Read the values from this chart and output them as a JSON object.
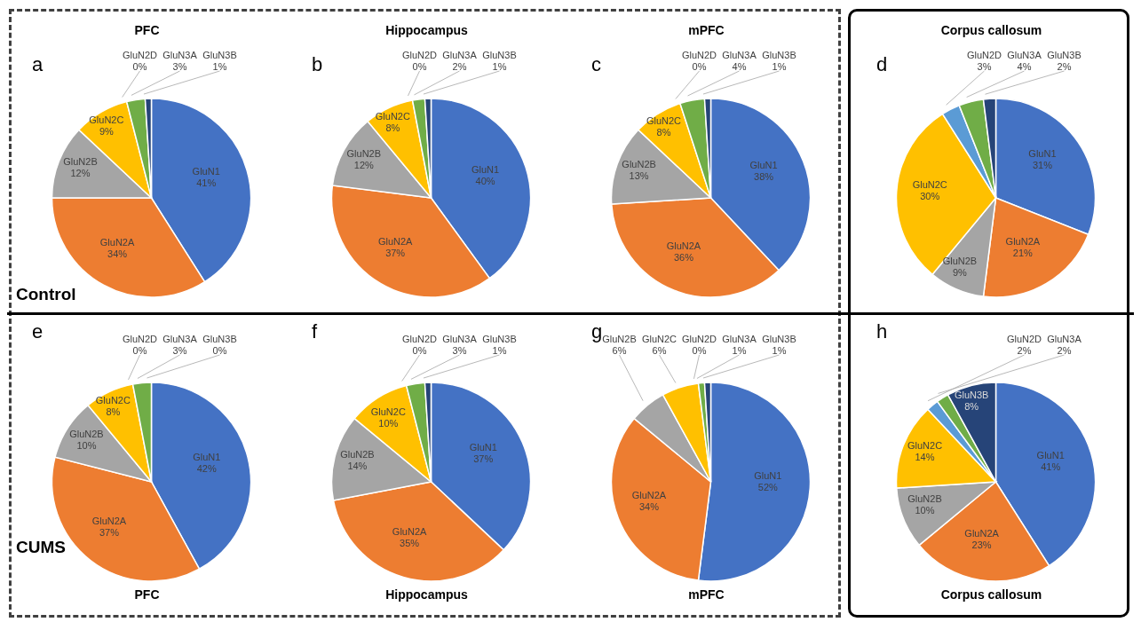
{
  "chart_data": [
    {
      "type": "pie",
      "title": "PFC",
      "annotations": [
        "a",
        "Control"
      ],
      "categories": [
        "GluN1",
        "GluN2A",
        "GluN2B",
        "GluN2C",
        "GluN2D",
        "GluN3A",
        "GluN3B"
      ],
      "values": [
        41,
        34,
        12,
        9,
        0,
        3,
        1
      ],
      "value_labels": [
        "41%",
        "34%",
        "12%",
        "9%",
        "0%",
        "3%",
        "1%"
      ],
      "colors": [
        "#4472c4",
        "#ed7d31",
        "#a5a5a5",
        "#ffc000",
        "#5b9bd5",
        "#70ad47",
        "#264478"
      ]
    },
    {
      "type": "pie",
      "title": "Hippocampus",
      "annotations": [
        "b"
      ],
      "categories": [
        "GluN1",
        "GluN2A",
        "GluN2B",
        "GluN2C",
        "GluN2D",
        "GluN3A",
        "GluN3B"
      ],
      "values": [
        40,
        37,
        12,
        8,
        0,
        2,
        1
      ],
      "value_labels": [
        "40%",
        "37%",
        "12%",
        "8%",
        "0%",
        "2%",
        "1%"
      ],
      "colors": [
        "#4472c4",
        "#ed7d31",
        "#a5a5a5",
        "#ffc000",
        "#5b9bd5",
        "#70ad47",
        "#264478"
      ]
    },
    {
      "type": "pie",
      "title": "mPFC",
      "annotations": [
        "c"
      ],
      "categories": [
        "GluN1",
        "GluN2A",
        "GluN2B",
        "GluN2C",
        "GluN2D",
        "GluN3A",
        "GluN3B"
      ],
      "values": [
        38,
        36,
        13,
        8,
        0,
        4,
        1
      ],
      "value_labels": [
        "38%",
        "36%",
        "13%",
        "8%",
        "0%",
        "4%",
        "1%"
      ],
      "colors": [
        "#4472c4",
        "#ed7d31",
        "#a5a5a5",
        "#ffc000",
        "#5b9bd5",
        "#70ad47",
        "#264478"
      ]
    },
    {
      "type": "pie",
      "title": "Corpus callosum",
      "annotations": [
        "d"
      ],
      "categories": [
        "GluN1",
        "GluN2A",
        "GluN2B",
        "GluN2C",
        "GluN2D",
        "GluN3A",
        "GluN3B"
      ],
      "values": [
        31,
        21,
        9,
        30,
        3,
        4,
        2
      ],
      "value_labels": [
        "31%",
        "21%",
        "9%",
        "30%",
        "3%",
        "4%",
        "2%"
      ],
      "colors": [
        "#4472c4",
        "#ed7d31",
        "#a5a5a5",
        "#ffc000",
        "#5b9bd5",
        "#70ad47",
        "#264478"
      ]
    },
    {
      "type": "pie",
      "title": "PFC",
      "annotations": [
        "e",
        "CUMS"
      ],
      "categories": [
        "GluN1",
        "GluN2A",
        "GluN2B",
        "GluN2C",
        "GluN2D",
        "GluN3A",
        "GluN3B"
      ],
      "values": [
        42,
        37,
        10,
        8,
        0,
        3,
        0
      ],
      "value_labels": [
        "42%",
        "37%",
        "10%",
        "8%",
        "0%",
        "3%",
        "0%"
      ],
      "colors": [
        "#4472c4",
        "#ed7d31",
        "#a5a5a5",
        "#ffc000",
        "#5b9bd5",
        "#70ad47",
        "#264478"
      ]
    },
    {
      "type": "pie",
      "title": "Hippocampus",
      "annotations": [
        "f"
      ],
      "categories": [
        "GluN1",
        "GluN2A",
        "GluN2B",
        "GluN2C",
        "GluN2D",
        "GluN3A",
        "GluN3B"
      ],
      "values": [
        37,
        35,
        14,
        10,
        0,
        3,
        1
      ],
      "value_labels": [
        "37%",
        "35%",
        "14%",
        "10%",
        "0%",
        "3%",
        "1%"
      ],
      "colors": [
        "#4472c4",
        "#ed7d31",
        "#a5a5a5",
        "#ffc000",
        "#5b9bd5",
        "#70ad47",
        "#264478"
      ]
    },
    {
      "type": "pie",
      "title": "mPFC",
      "annotations": [
        "g"
      ],
      "categories": [
        "GluN1",
        "GluN2A",
        "GluN2B",
        "GluN2C",
        "GluN2D",
        "GluN3A",
        "GluN3B"
      ],
      "values": [
        52,
        34,
        6,
        6,
        0,
        1,
        1
      ],
      "value_labels": [
        "52%",
        "34%",
        "6%",
        "6%",
        "0%",
        "1%",
        "1%"
      ],
      "colors": [
        "#4472c4",
        "#ed7d31",
        "#a5a5a5",
        "#ffc000",
        "#5b9bd5",
        "#70ad47",
        "#264478"
      ]
    },
    {
      "type": "pie",
      "title": "Corpus callosum",
      "annotations": [
        "h"
      ],
      "categories": [
        "GluN1",
        "GluN2A",
        "GluN2B",
        "GluN2C",
        "GluN2D",
        "GluN3A",
        "GluN3B"
      ],
      "values": [
        41,
        23,
        10,
        14,
        2,
        2,
        8
      ],
      "value_labels": [
        "41%",
        "23%",
        "10%",
        "14%",
        "2%",
        "2%",
        "8%"
      ],
      "colors": [
        "#4472c4",
        "#ed7d31",
        "#a5a5a5",
        "#ffc000",
        "#5b9bd5",
        "#70ad47",
        "#264478"
      ]
    }
  ]
}
